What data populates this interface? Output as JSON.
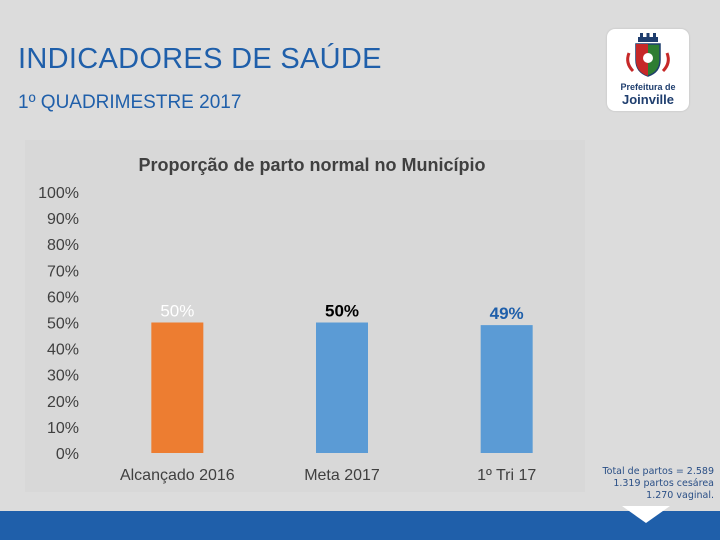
{
  "header": {
    "title": "INDICADORES DE SAÚDE",
    "subtitle": "1º QUADRIMESTRE 2017"
  },
  "logo": {
    "line1": "Prefeitura de",
    "line2": "Joinville",
    "icon": "city-coat-of-arms-icon"
  },
  "colors": {
    "orange": "#ed7d31",
    "blue": "#5b9bd5",
    "header_blue": "#1f5faa"
  },
  "chart_data": {
    "type": "bar",
    "title": "Proporção de parto normal no Município",
    "categories": [
      "Alcançado 2016",
      "Meta 2017",
      "1º Tri 17"
    ],
    "values": [
      50,
      50,
      49
    ],
    "data_labels": [
      "50%",
      "50%",
      "49%"
    ],
    "bar_colors": [
      "#ed7d31",
      "#5b9bd5",
      "#5b9bd5"
    ],
    "label_colors": [
      "#ffffff",
      "#000000",
      "#1f5faa"
    ],
    "label_bold": [
      false,
      true,
      true
    ],
    "yticks": [
      "0%",
      "10%",
      "20%",
      "30%",
      "40%",
      "50%",
      "60%",
      "70%",
      "80%",
      "90%",
      "100%"
    ],
    "ylim": [
      0,
      100
    ],
    "grid": false,
    "legend": "none"
  },
  "note": {
    "line1": "Total de partos = 2.589",
    "line2": "1.319 partos cesárea",
    "line3": "1.270 vaginal."
  }
}
